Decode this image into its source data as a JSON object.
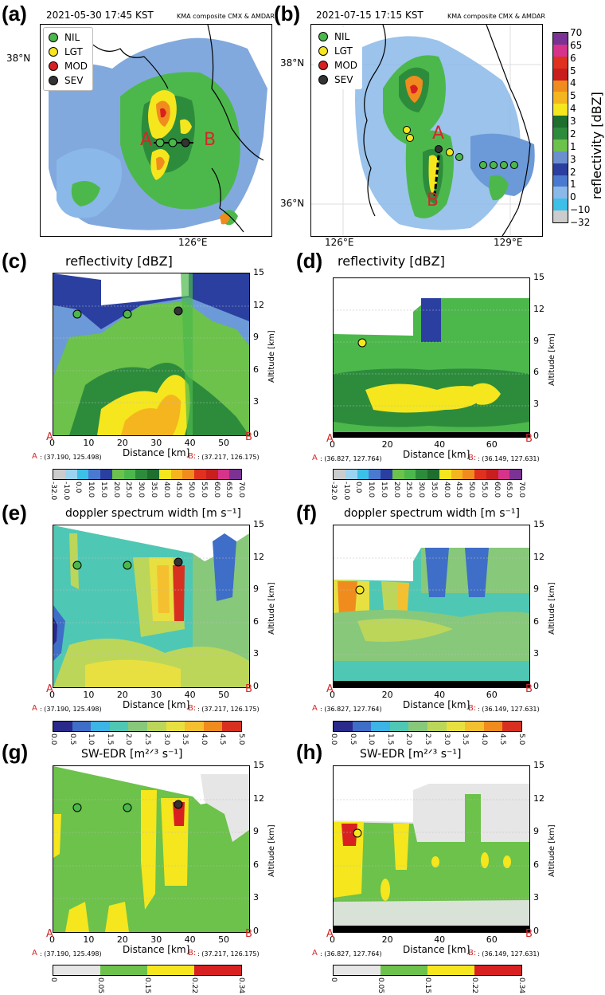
{
  "panels": {
    "a": {
      "label": "(a)",
      "timestamp": "2021-05-30 17:45 KST",
      "source": "KMA composite CMX & AMDAR",
      "lat": "38°N",
      "lon": "126°E",
      "point_a": "A",
      "point_b": "B"
    },
    "b": {
      "label": "(b)",
      "timestamp": "2021-07-15 17:15 KST",
      "source": "KMA composite CMX & AMDAR",
      "lat1": "38°N",
      "lat2": "36°N",
      "lon1": "126°E",
      "lon2": "129°E",
      "point_a": "A",
      "point_b": "B"
    },
    "c": {
      "label": "(c)",
      "title": "reflectivity [dBZ]"
    },
    "d": {
      "label": "(d)",
      "title": "reflectivity [dBZ]"
    },
    "e": {
      "label": "(e)",
      "title": "doppler spectrum width [m s⁻¹]"
    },
    "f": {
      "label": "(f)",
      "title": "doppler spectrum width [m s⁻¹]"
    },
    "g": {
      "label": "(g)",
      "title": "SW-EDR [m²ᐟ³ s⁻¹]"
    },
    "h": {
      "label": "(h)",
      "title": "SW-EDR [m²ᐟ³ s⁻¹]"
    }
  },
  "legend": [
    {
      "label": "NIL",
      "color": "#4cb84c"
    },
    {
      "label": "LGT",
      "color": "#f5e61e"
    },
    {
      "label": "MOD",
      "color": "#d92020"
    },
    {
      "label": "SEV",
      "color": "#333333"
    }
  ],
  "vertical_colorbar": {
    "label": "reflectivity [dBZ]",
    "ticks": [
      "70",
      "65",
      "6",
      "5",
      "4",
      "5",
      "4",
      "3",
      "2",
      "1",
      "3",
      "2",
      "1",
      "0",
      "−10",
      "−32"
    ],
    "colors": [
      "#7b3294",
      "#d6338b",
      "#e0301e",
      "#c81e1e",
      "#f08c1e",
      "#f5b51e",
      "#f5e61e",
      "#1e6e2d",
      "#2d8c3c",
      "#6cc24a",
      "#6c8fd0",
      "#2a3fa0",
      "#4a7ad0",
      "#8ab8e8",
      "#3cc0e8",
      "#cccccc"
    ]
  },
  "cross_sections": {
    "altitude_label": "Altitude [km]",
    "altitude_ticks": [
      "15",
      "12",
      "9",
      "6",
      "3",
      "0"
    ],
    "distance_label": "Distance [km]",
    "left": {
      "xticks": [
        "0",
        "10",
        "20",
        "30",
        "40",
        "50"
      ],
      "coord_a": ": (37.190, 125.498)",
      "coord_b": ": (37.217, 126.175)",
      "a": "A",
      "b": "B",
      "a_prefix": "A",
      "b_prefix": "B:"
    },
    "right": {
      "xticks": [
        "0",
        "20",
        "40",
        "60"
      ],
      "coord_a": ": (36.827, 127.764)",
      "coord_b": ": (36.149, 127.631)",
      "a": "A",
      "b": "B",
      "a_prefix": "A",
      "b_prefix": "B:"
    }
  },
  "colorbars": {
    "reflectivity": {
      "ticks": [
        "-32.0",
        "-10.0",
        "0.0",
        "10.0",
        "15.0",
        "20.0",
        "25.0",
        "30.0",
        "35.0",
        "40.0",
        "45.0",
        "50.0",
        "55.0",
        "60.0",
        "65.0",
        "70.0"
      ],
      "colors": [
        "#cccccc",
        "#9ad4f0",
        "#3cc0e8",
        "#4a7ad0",
        "#2a3fa0",
        "#6cc24a",
        "#4cb84c",
        "#2d8c3c",
        "#1e6e2d",
        "#f5e61e",
        "#f5b51e",
        "#f08c1e",
        "#e0301e",
        "#c81e1e",
        "#d6338b",
        "#7b3294"
      ]
    },
    "spectrum_width": {
      "ticks": [
        "0.0",
        "0.5",
        "1.0",
        "1.5",
        "2.0",
        "2.5",
        "3.0",
        "3.5",
        "4.0",
        "4.5",
        "5.0"
      ],
      "colors": [
        "#2a2a8c",
        "#3e6ec8",
        "#3cb4e6",
        "#4ec8b4",
        "#88c87a",
        "#bcd65a",
        "#e8e040",
        "#f5c030",
        "#f08c1e",
        "#d83020"
      ]
    },
    "edr": {
      "ticks": [
        "0",
        "0.05",
        "0.15",
        "0.22",
        "0.34"
      ],
      "colors": [
        "#e6e6e6",
        "#6cc24a",
        "#f5e61e",
        "#d92020"
      ]
    }
  }
}
